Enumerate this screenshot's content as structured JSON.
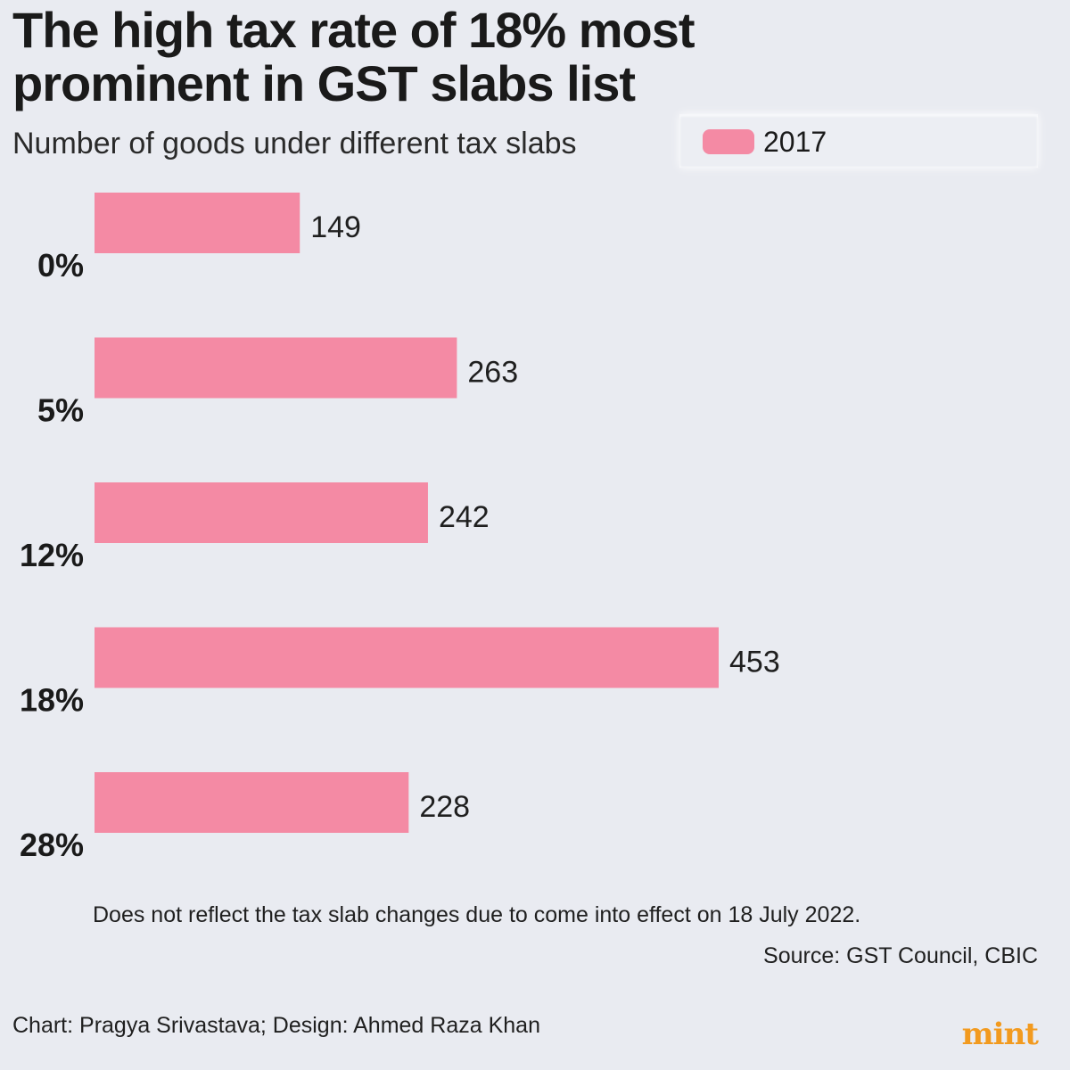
{
  "header": {
    "title": "The high tax rate of 18% most prominent in GST slabs list",
    "subtitle": "Number of goods under different tax slabs"
  },
  "legend": {
    "label": "2017",
    "color": "#f48aa4"
  },
  "chart_data": {
    "type": "bar",
    "orientation": "horizontal",
    "title": "The high tax rate of 18% most prominent in GST slabs list",
    "subtitle": "Number of goods under different tax slabs",
    "categories": [
      "0%",
      "5%",
      "12%",
      "18%",
      "28%"
    ],
    "series": [
      {
        "name": "2017",
        "values": [
          149,
          263,
          242,
          453,
          228
        ],
        "color": "#f48aa4"
      }
    ],
    "xlim": [
      0,
      453
    ],
    "grid": false,
    "legend_position": "top-right",
    "data_labels": true
  },
  "footer": {
    "note": "Does not reflect the tax slab changes due to come into effect on 18 July 2022.",
    "source": "Source: GST Council, CBIC",
    "credit": "Chart: Pragya Srivastava; Design: Ahmed Raza Khan",
    "logo": "mint"
  }
}
